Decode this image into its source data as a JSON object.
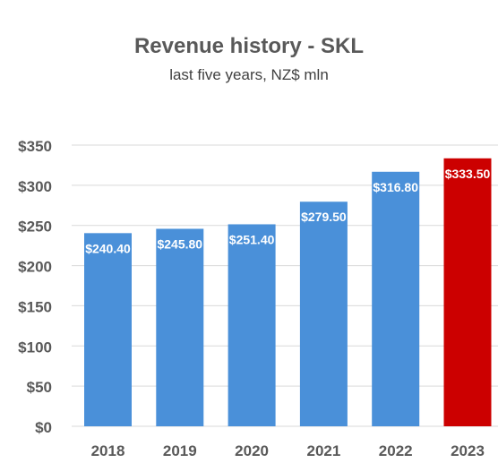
{
  "chart_data": {
    "type": "bar",
    "title": "Revenue history - SKL",
    "subtitle": "last five years, NZ$ mln",
    "xlabel": "",
    "ylabel": "",
    "categories": [
      "2018",
      "2019",
      "2020",
      "2021",
      "2022",
      "2023"
    ],
    "values": [
      240.4,
      245.8,
      251.4,
      279.5,
      316.8,
      333.5
    ],
    "data_labels": [
      "$240.40",
      "$245.80",
      "$251.40",
      "$279.50",
      "$316.80",
      "$333.50"
    ],
    "ylim": [
      0,
      350
    ],
    "yticks": [
      0,
      50,
      100,
      150,
      200,
      250,
      300,
      350
    ],
    "ytick_labels": [
      "$0",
      "$50",
      "$100",
      "$150",
      "$200",
      "$250",
      "$300",
      "$350"
    ],
    "grid": true,
    "legend": "none",
    "colors": {
      "default_bar": "#4a90d9",
      "highlight_bar": "#cc0000",
      "grid": "#d9d9d9",
      "tick_text": "#595959",
      "data_label": "#ffffff"
    },
    "highlight_index": 5
  }
}
